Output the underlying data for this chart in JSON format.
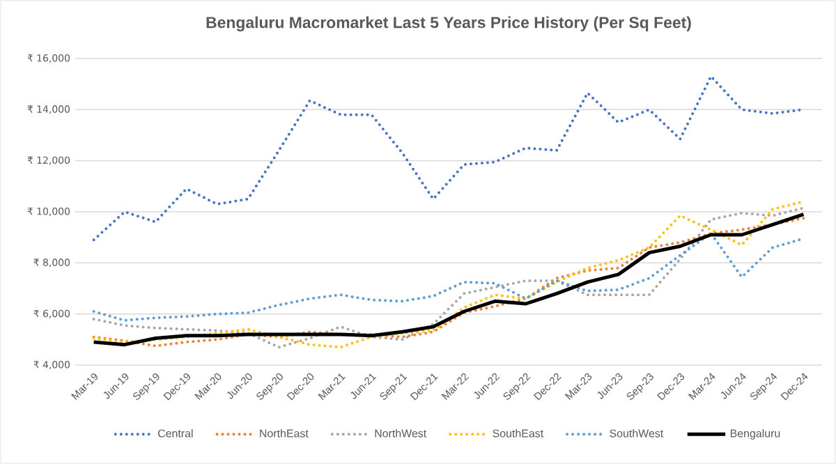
{
  "chart_data": {
    "type": "line",
    "title": "Bengaluru Macromarket Last 5 Years Price History (Per Sq Feet)",
    "categories": [
      "Mar-19",
      "Jun-19",
      "Sep-19",
      "Dec-19",
      "Mar-20",
      "Jun-20",
      "Sep-20",
      "Dec-20",
      "Mar-21",
      "Jun-21",
      "Sep-21",
      "Dec-21",
      "Mar-22",
      "Jun-22",
      "Sep-22",
      "Dec-22",
      "Mar-23",
      "Jun-23",
      "Sep-23",
      "Dec-23",
      "Mar-24",
      "Jun-24",
      "Sep-24",
      "Dec-24"
    ],
    "series": [
      {
        "name": "Central",
        "color": "#4472c4",
        "line_style": "dotted",
        "values": [
          8900,
          10000,
          9600,
          10900,
          10300,
          10500,
          12400,
          14350,
          13800,
          13800,
          12300,
          10500,
          11850,
          11950,
          12500,
          12400,
          14650,
          13500,
          14000,
          12850,
          15300,
          14000,
          13850,
          14000
        ]
      },
      {
        "name": "NorthEast",
        "color": "#ed7d31",
        "line_style": "dotted",
        "values": [
          5100,
          4950,
          4750,
          4900,
          5000,
          5200,
          5100,
          5300,
          5200,
          5200,
          5100,
          5300,
          6050,
          6300,
          6600,
          7400,
          7700,
          7800,
          8600,
          8800,
          9150,
          9300,
          9500,
          9750
        ]
      },
      {
        "name": "NorthWest",
        "color": "#a5a5a5",
        "line_style": "dotted",
        "values": [
          5800,
          5550,
          5450,
          5400,
          5350,
          5250,
          4700,
          5050,
          5500,
          5100,
          5000,
          5600,
          6800,
          7050,
          7300,
          7300,
          6750,
          6750,
          6750,
          8150,
          9700,
          9950,
          9850,
          10150
        ]
      },
      {
        "name": "SouthEast",
        "color": "#ffc000",
        "line_style": "dotted",
        "values": [
          5050,
          4900,
          5000,
          5100,
          5250,
          5400,
          5100,
          4800,
          4700,
          5100,
          5250,
          5350,
          6250,
          6750,
          6600,
          7250,
          7800,
          8100,
          8600,
          9850,
          9300,
          8700,
          10100,
          10400
        ]
      },
      {
        "name": "SouthWest",
        "color": "#5b9bd5",
        "line_style": "dotted",
        "values": [
          6100,
          5750,
          5850,
          5900,
          6000,
          6050,
          6350,
          6600,
          6750,
          6550,
          6500,
          6700,
          7250,
          7200,
          6600,
          7300,
          6900,
          6950,
          7400,
          8300,
          9150,
          7450,
          8600,
          8950
        ]
      },
      {
        "name": "Bengaluru",
        "color": "#000000",
        "line_style": "solid",
        "values": [
          4900,
          4800,
          5050,
          5150,
          5150,
          5200,
          5200,
          5200,
          5200,
          5150,
          5300,
          5500,
          6100,
          6500,
          6400,
          6800,
          7250,
          7550,
          8400,
          8650,
          9100,
          9100,
          9500,
          9900
        ]
      }
    ],
    "ylim": [
      4000,
      16000
    ],
    "yticks": [
      {
        "value": 4000,
        "label": "₹ 4,000"
      },
      {
        "value": 6000,
        "label": "₹ 6,000"
      },
      {
        "value": 8000,
        "label": "₹ 8,000"
      },
      {
        "value": 10000,
        "label": "₹ 10,000"
      },
      {
        "value": 12000,
        "label": "₹ 12,000"
      },
      {
        "value": 14000,
        "label": "₹ 14,000"
      },
      {
        "value": 16000,
        "label": "₹ 16,000"
      }
    ],
    "grid": "y",
    "legend": "bottom",
    "marker": "none"
  }
}
